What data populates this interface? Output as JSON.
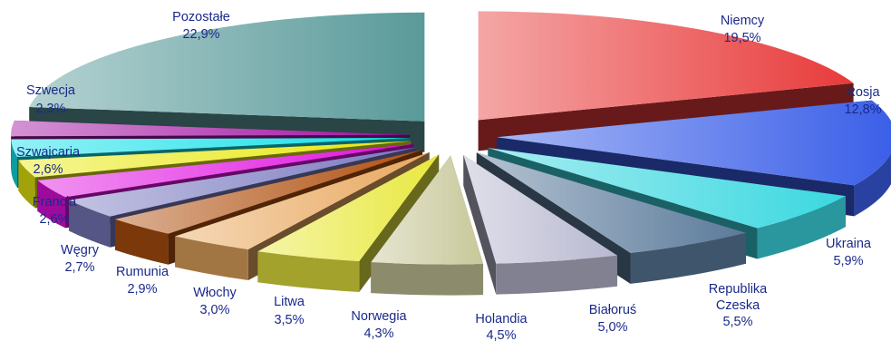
{
  "chart_data": {
    "type": "pie",
    "style": "3d-exploded",
    "labels": [
      "Niemcy",
      "Rosja",
      "Ukraina",
      "Republika Czeska",
      "Białoruś",
      "Holandia",
      "Norwegia",
      "Litwa",
      "Włochy",
      "Rumunia",
      "Węgry",
      "Francja",
      "Szwajcaria",
      "Szwecja",
      "Pozostałe"
    ],
    "values": [
      19.5,
      12.8,
      5.9,
      5.5,
      5.0,
      4.5,
      4.3,
      3.5,
      3.0,
      2.9,
      2.7,
      2.6,
      2.6,
      2.3,
      22.9
    ],
    "value_labels": [
      "19,5%",
      "12,8%",
      "5,9%",
      "5,5%",
      "5,0%",
      "4,5%",
      "4,3%",
      "3,5%",
      "3,0%",
      "2,9%",
      "2,7%",
      "2,6%",
      "2,6%",
      "2,3%",
      "22,9%"
    ],
    "colors": [
      "#e83a3a",
      "#3a5ee8",
      "#3ad8e0",
      "#5a7a9a",
      "#b8b8d0",
      "#c8c89a",
      "#e8e840",
      "#e8a860",
      "#b05010",
      "#7a7ac0",
      "#e010e0",
      "#e8e810",
      "#10e0e8",
      "#a010a0",
      "#5a9a9a"
    ],
    "legend": "none",
    "label_placement": "outside"
  },
  "labels_display": [
    {
      "name": "Niemcy",
      "pct": "19,5%"
    },
    {
      "name": "Rosja",
      "pct": "12,8%"
    },
    {
      "name": "Ukraina",
      "pct": "5,9%"
    },
    {
      "name": "Republika",
      "name2": "Czeska",
      "pct": "5,5%"
    },
    {
      "name": "Białoruś",
      "pct": "5,0%"
    },
    {
      "name": "Holandia",
      "pct": "4,5%"
    },
    {
      "name": "Norwegia",
      "pct": "4,3%"
    },
    {
      "name": "Litwa",
      "pct": "3,5%"
    },
    {
      "name": "Włochy",
      "pct": "3,0%"
    },
    {
      "name": "Rumunia",
      "pct": "2,9%"
    },
    {
      "name": "Węgry",
      "pct": "2,7%"
    },
    {
      "name": "Francja",
      "pct": "2,6%"
    },
    {
      "name": "Szwajcaria",
      "pct": "2,6%"
    },
    {
      "name": "Szwecja",
      "pct": "2,3%"
    },
    {
      "name": "Pozostałe",
      "pct": "22,9%"
    }
  ]
}
